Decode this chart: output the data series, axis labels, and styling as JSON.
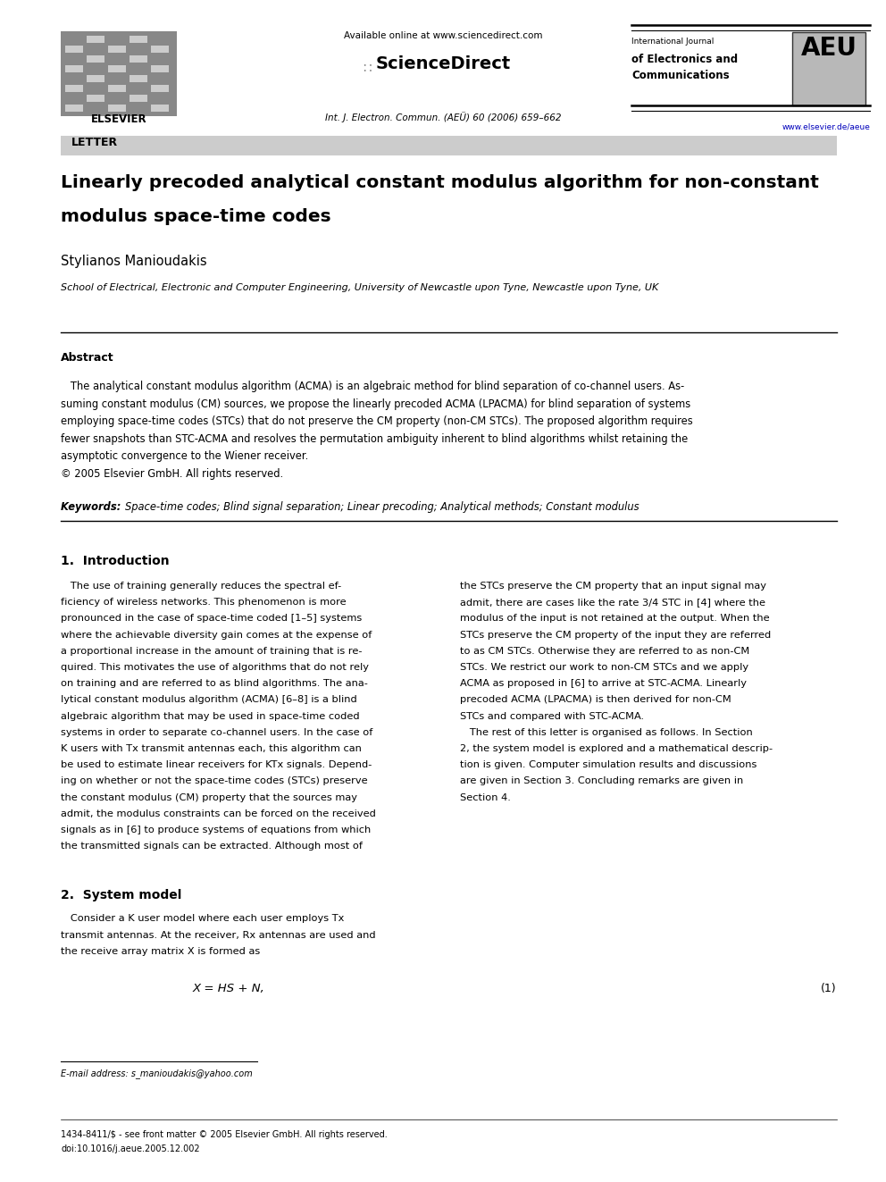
{
  "page_width": 9.92,
  "page_height": 13.23,
  "bg_color": "#ffffff",
  "available_online": "Available online at www.sciencedirect.com",
  "sciencedirect": "ScienceDirect",
  "journal_info": "Int. J. Electron. Commun. (AEÜ) 60 (2006) 659–662",
  "journal_name_line1": "International Journal",
  "journal_name_line2": "of Electronics and",
  "journal_name_line3": "Communications",
  "aeu_text": "AEU",
  "website": "www.elsevier.de/aeue",
  "elsevier_label": "ELSEVIER",
  "letter_label": "LETTER",
  "title_line1": "Linearly precoded analytical constant modulus algorithm for non-constant",
  "title_line2": "modulus space-time codes",
  "author": "Stylianos Manioudakis",
  "affiliation": "School of Electrical, Electronic and Computer Engineering, University of Newcastle upon Tyne, Newcastle upon Tyne, UK",
  "abstract_title": "Abstract",
  "abs_lines": [
    "   The analytical constant modulus algorithm (ACMA) is an algebraic method for blind separation of co-channel users. As-",
    "suming constant modulus (CM) sources, we propose the linearly precoded ACMA (LPACMA) for blind separation of systems",
    "employing space-time codes (STCs) that do not preserve the CM property (non-CM STCs). The proposed algorithm requires",
    "fewer snapshots than STC-ACMA and resolves the permutation ambiguity inherent to blind algorithms whilst retaining the",
    "asymptotic convergence to the Wiener receiver.",
    "© 2005 Elsevier GmbH. All rights reserved."
  ],
  "keywords_bold": "Keywords: ",
  "keywords_rest": "Space-time codes; Blind signal separation; Linear precoding; Analytical methods; Constant modulus",
  "sec1_title": "1.  Introduction",
  "sec1_left": [
    "   The use of training generally reduces the spectral ef-",
    "ficiency of wireless networks. This phenomenon is more",
    "pronounced in the case of space-time coded [1–5] systems",
    "where the achievable diversity gain comes at the expense of",
    "a proportional increase in the amount of training that is re-",
    "quired. This motivates the use of algorithms that do not rely",
    "on training and are referred to as blind algorithms. The ana-",
    "lytical constant modulus algorithm (ACMA) [6–8] is a blind",
    "algebraic algorithm that may be used in space-time coded",
    "systems in order to separate co-channel users. In the case of",
    "K users with Tx transmit antennas each, this algorithm can",
    "be used to estimate linear receivers for KTx signals. Depend-",
    "ing on whether or not the space-time codes (STCs) preserve",
    "the constant modulus (CM) property that the sources may",
    "admit, the modulus constraints can be forced on the received",
    "signals as in [6] to produce systems of equations from which",
    "the transmitted signals can be extracted. Although most of"
  ],
  "sec1_right": [
    "the STCs preserve the CM property that an input signal may",
    "admit, there are cases like the rate 3/4 STC in [4] where the",
    "modulus of the input is not retained at the output. When the",
    "STCs preserve the CM property of the input they are referred",
    "to as CM STCs. Otherwise they are referred to as non-CM",
    "STCs. We restrict our work to non-CM STCs and we apply",
    "ACMA as proposed in [6] to arrive at STC-ACMA. Linearly",
    "precoded ACMA (LPACMA) is then derived for non-CM",
    "STCs and compared with STC-ACMA.",
    "   The rest of this letter is organised as follows. In Section",
    "2, the system model is explored and a mathematical descrip-",
    "tion is given. Computer simulation results and discussions",
    "are given in Section 3. Concluding remarks are given in",
    "Section 4."
  ],
  "sec2_title": "2.  System model",
  "sec2_lines": [
    "   Consider a K user model where each user employs Tx",
    "transmit antennas. At the receiver, Rx antennas are used and",
    "the receive array matrix X is formed as"
  ],
  "equation": "X = HS + N,",
  "equation_number": "(1)",
  "footnote": "E-mail address: s_manioudakis@yahoo.com",
  "footer1": "1434-8411/$ - see front matter © 2005 Elsevier GmbH. All rights reserved.",
  "footer2": "doi:10.1016/j.aeue.2005.12.002"
}
